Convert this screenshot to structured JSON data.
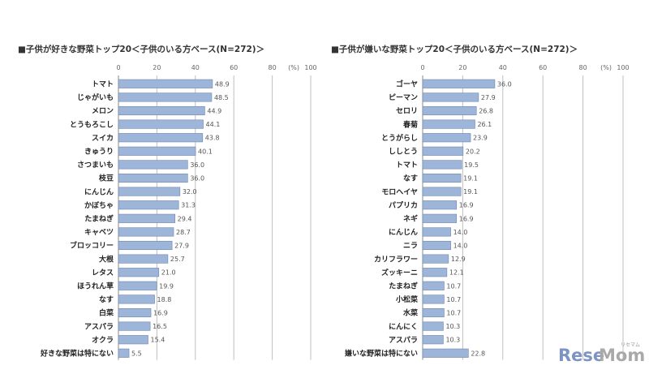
{
  "chart_data": [
    {
      "type": "bar",
      "orientation": "horizontal",
      "title": "■子供が好きな野菜トップ20＜子供のいる方ベース(N=272)＞",
      "unit_label": "(%)",
      "xlim": [
        0,
        100
      ],
      "ticks": [
        0,
        20,
        40,
        60,
        80,
        100
      ],
      "categories": [
        "トマト",
        "じゃがいも",
        "メロン",
        "とうもろこし",
        "スイカ",
        "きゅうり",
        "さつまいも",
        "枝豆",
        "にんじん",
        "かぼちゃ",
        "たまねぎ",
        "キャベツ",
        "ブロッコリー",
        "大根",
        "レタス",
        "ほうれん草",
        "なす",
        "白菜",
        "アスパラ",
        "オクラ",
        "好きな野菜は特にない"
      ],
      "values": [
        48.9,
        48.5,
        44.9,
        44.1,
        43.8,
        40.1,
        36.0,
        36.0,
        32.0,
        31.3,
        29.4,
        28.7,
        27.9,
        25.7,
        21.0,
        19.9,
        18.8,
        16.9,
        16.5,
        15.4,
        5.5
      ],
      "value_labels": [
        "48.9",
        "48.5",
        "44.9",
        "44.1",
        "43.8",
        "40.1",
        "36.0",
        "36.0",
        "32.0",
        "31.3",
        "29.4",
        "28.7",
        "27.9",
        "25.7",
        "21.0",
        "19.9",
        "18.8",
        "16.9",
        "16.5",
        "15.4",
        "5.5"
      ]
    },
    {
      "type": "bar",
      "orientation": "horizontal",
      "title": "■子供が嫌いな野菜トップ20＜子供のいる方ベース(N=272)＞",
      "unit_label": "(%)",
      "xlim": [
        0,
        100
      ],
      "ticks": [
        0,
        20,
        40,
        60,
        80,
        100
      ],
      "categories": [
        "ゴーヤ",
        "ピーマン",
        "セロリ",
        "春菊",
        "とうがらし",
        "ししとう",
        "トマト",
        "なす",
        "モロヘイヤ",
        "パプリカ",
        "ネギ",
        "にんじん",
        "ニラ",
        "カリフラワー",
        "ズッキーニ",
        "たまねぎ",
        "小松菜",
        "水菜",
        "にんにく",
        "アスパラ",
        "嫌いな野菜は特にない"
      ],
      "values": [
        36.0,
        27.9,
        26.8,
        26.1,
        23.9,
        20.2,
        19.5,
        19.1,
        19.1,
        16.9,
        16.9,
        14.0,
        14.0,
        12.9,
        12.1,
        10.7,
        10.7,
        10.7,
        10.3,
        10.3,
        22.8
      ],
      "value_labels": [
        "36.0",
        "27.9",
        "26.8",
        "26.1",
        "23.9",
        "20.2",
        "19.5",
        "19.1",
        "19.1",
        "16.9",
        "16.9",
        "14.0",
        "14.0",
        "12.9",
        "12.1",
        "10.7",
        "10.7",
        "10.7",
        "10.3",
        "10.3",
        "22.8"
      ]
    }
  ],
  "watermark": {
    "brand_part1": "Rese",
    "brand_part2": "Mom",
    "brand_kana": "リセマム"
  },
  "colors": {
    "bar_fill": "#9db5d9",
    "bar_stroke": "#6f86ad",
    "grid": "#bfbfbf",
    "axis": "#888888"
  }
}
